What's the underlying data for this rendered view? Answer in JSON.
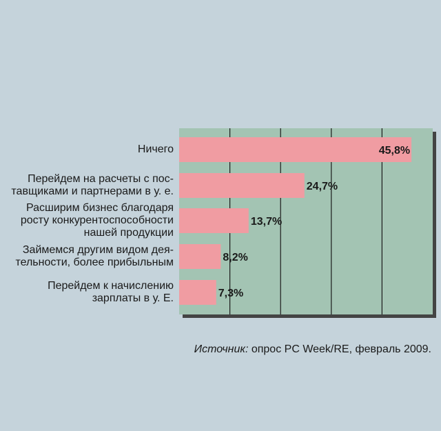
{
  "chart_data": {
    "type": "bar",
    "orientation": "horizontal",
    "categories": [
      "Ничего",
      "Перейдем на расчеты с пос-\nтавщиками и партнерами в у. е.",
      "Расширим бизнес благодаря\nросту конкурентоспособности\nнашей продукции",
      "Займемся другим видом дея-\nтельности, более прибыльным",
      "Перейдем к начислению\nзарплаты в у. Е."
    ],
    "values": [
      45.8,
      24.7,
      13.7,
      8.2,
      7.3
    ],
    "value_labels": [
      "45,8%",
      "24,7%",
      "13,7%",
      "8,2%",
      "7,3%"
    ],
    "xlim": [
      0,
      50
    ],
    "grid": true,
    "colors": {
      "background": "#c5d3db",
      "plot": "#a3c4b3",
      "bar": "#f09ca2",
      "grid": "#1a1a1a",
      "shadow": "#444444"
    }
  },
  "source": {
    "prefix": "Источник:",
    "text": " опрос PC Week/RE, февраль 2009."
  }
}
